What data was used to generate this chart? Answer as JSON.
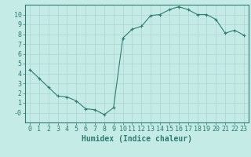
{
  "x": [
    0,
    1,
    2,
    3,
    4,
    5,
    6,
    7,
    8,
    9,
    10,
    11,
    12,
    13,
    14,
    15,
    16,
    17,
    18,
    19,
    20,
    21,
    22,
    23
  ],
  "y": [
    4.4,
    3.5,
    2.6,
    1.7,
    1.6,
    1.2,
    0.4,
    0.3,
    -0.2,
    0.5,
    7.6,
    8.5,
    8.8,
    9.9,
    10.0,
    10.5,
    10.8,
    10.5,
    10.0,
    10.0,
    9.5,
    8.1,
    8.4,
    7.9
  ],
  "line_color": "#2e7d6e",
  "marker": "+",
  "marker_size": 3,
  "xlabel": "Humidex (Indice chaleur)",
  "xlim": [
    -0.5,
    23.5
  ],
  "ylim": [
    -1,
    11
  ],
  "yticks": [
    0,
    1,
    2,
    3,
    4,
    5,
    6,
    7,
    8,
    9,
    10
  ],
  "xticks": [
    0,
    1,
    2,
    3,
    4,
    5,
    6,
    7,
    8,
    9,
    10,
    11,
    12,
    13,
    14,
    15,
    16,
    17,
    18,
    19,
    20,
    21,
    22,
    23
  ],
  "background_color": "#c5ebe7",
  "grid_color": "#aad4cf",
  "axes_color": "#2e7d6e",
  "tick_label_color": "#2e7d6e",
  "xlabel_color": "#2e7d6e",
  "label_fontsize": 7,
  "tick_fontsize": 6
}
